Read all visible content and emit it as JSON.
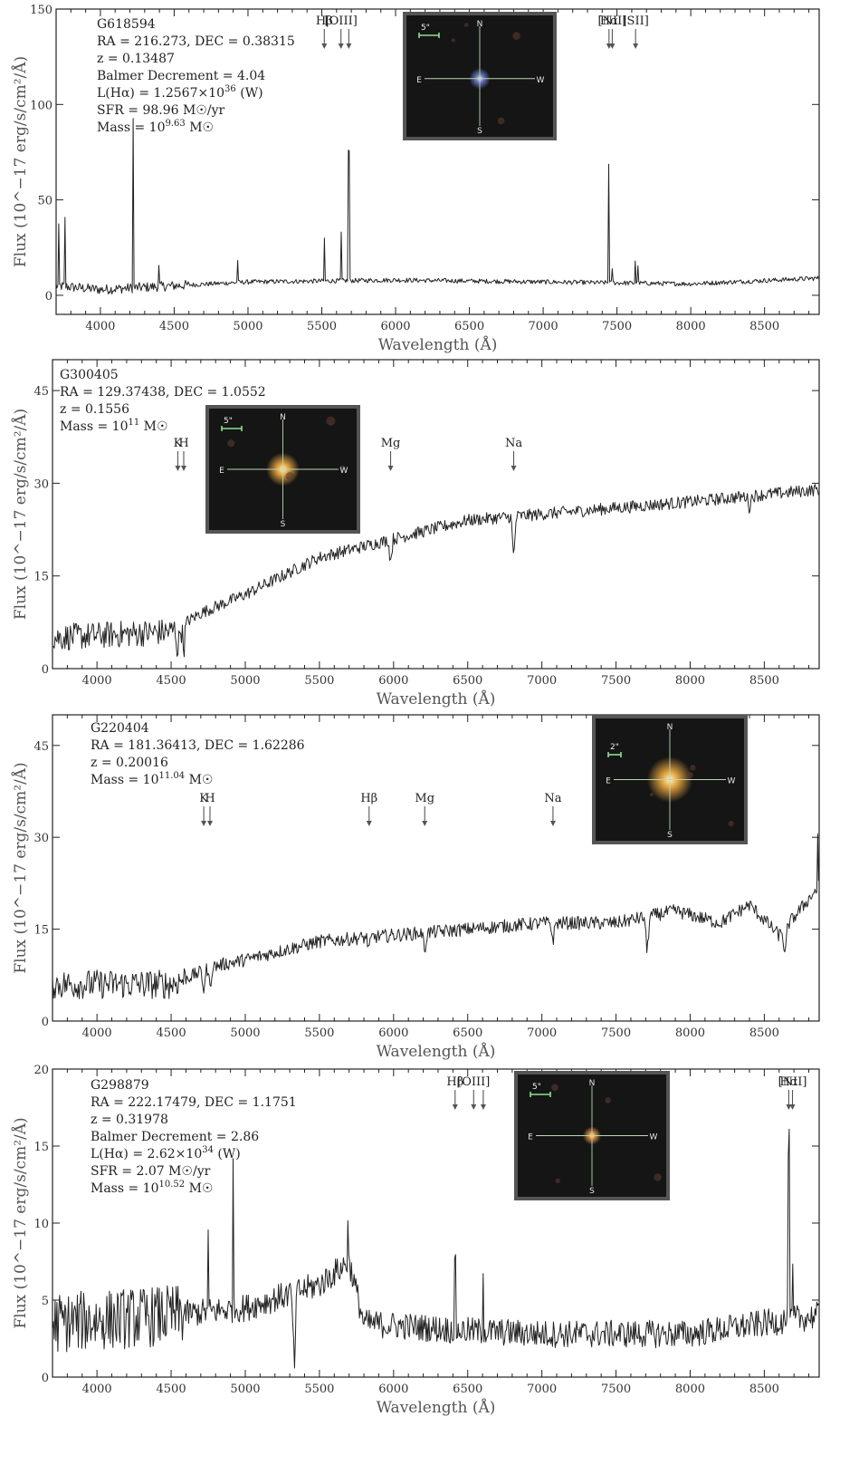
{
  "chart_data": [
    {
      "type": "line",
      "id": "G618594",
      "info": [
        "G618594",
        "RA = 216.273, DEC = 0.38315",
        "z = 0.13487",
        "Balmer Decrement = 4.04",
        "L(Hα) = 1.2567×10^36 (W)",
        "SFR = 98.96 M☉/yr",
        "Mass = 10^9.63 M☉"
      ],
      "xlabel": "Wavelength (Å)",
      "ylabel": "Flux (10^−17 erg/s/cm²/Å)",
      "xlim": [
        3700,
        8870
      ],
      "ylim": [
        -10,
        150
      ],
      "xticks": [
        4000,
        4500,
        5000,
        5500,
        6000,
        6500,
        7000,
        7500,
        8000,
        8500
      ],
      "yticks": [
        0,
        50,
        100,
        150
      ],
      "lines": [
        {
          "label": "Hβ",
          "wavelengths": [
            5517
          ]
        },
        {
          "label": "[OIII]",
          "wavelengths": [
            5630,
            5683
          ]
        },
        {
          "label": "Hα",
          "wavelengths": [
            7446
          ]
        },
        {
          "label": "[NII]",
          "wavelengths": [
            7468
          ]
        },
        {
          "label": "[SII]",
          "wavelengths": [
            7626
          ]
        }
      ],
      "inset": {
        "scale_label": "5\"",
        "compass": [
          "N",
          "E",
          "W",
          "S"
        ],
        "color": "#6a78c8"
      },
      "continuum": [
        [
          3700,
          5
        ],
        [
          4000,
          3
        ],
        [
          4500,
          5
        ],
        [
          5000,
          7
        ],
        [
          6000,
          8
        ],
        [
          7000,
          7
        ],
        [
          8000,
          6
        ],
        [
          8870,
          9
        ]
      ],
      "emission": [
        [
          3720,
          30
        ],
        [
          3760,
          35
        ],
        [
          4220,
          88
        ],
        [
          4395,
          10
        ],
        [
          4930,
          12
        ],
        [
          5517,
          22
        ],
        [
          5630,
          25
        ],
        [
          5683,
          68
        ],
        [
          7446,
          63
        ],
        [
          7468,
          8
        ],
        [
          7626,
          12
        ],
        [
          7640,
          10
        ]
      ],
      "absorption": [],
      "noise": 1.2
    },
    {
      "type": "line",
      "id": "G300405",
      "info": [
        "G300405",
        "RA = 129.37438, DEC = 1.0552",
        "z = 0.1556",
        "Mass = 10^11 M☉"
      ],
      "xlabel": "Wavelength (Å)",
      "ylabel": "Flux (10^−17 erg/s/cm²/Å)",
      "xlim": [
        3700,
        8870
      ],
      "ylim": [
        0,
        50
      ],
      "xticks": [
        4000,
        4500,
        5000,
        5500,
        6000,
        6500,
        7000,
        7500,
        8000,
        8500
      ],
      "yticks": [
        0,
        15,
        30,
        45
      ],
      "lines": [
        {
          "label": "K",
          "wavelengths": [
            4545
          ]
        },
        {
          "label": "H",
          "wavelengths": [
            4585
          ]
        },
        {
          "label": "Mg",
          "wavelengths": [
            5980
          ]
        },
        {
          "label": "Na",
          "wavelengths": [
            6810
          ]
        }
      ],
      "inset": {
        "scale_label": "5\"",
        "compass": [
          "N",
          "E",
          "W",
          "S"
        ],
        "color": "#e0a040"
      },
      "continuum": [
        [
          3700,
          5
        ],
        [
          4500,
          6
        ],
        [
          4700,
          9
        ],
        [
          5000,
          12
        ],
        [
          5500,
          18
        ],
        [
          6000,
          21
        ],
        [
          6500,
          24
        ],
        [
          7000,
          25
        ],
        [
          7500,
          26
        ],
        [
          8000,
          27
        ],
        [
          8870,
          29
        ]
      ],
      "emission": [],
      "absorption": [
        [
          4545,
          4
        ],
        [
          4585,
          4
        ],
        [
          5980,
          3.5
        ],
        [
          6810,
          7
        ],
        [
          8400,
          2
        ]
      ],
      "noise": 1.0
    },
    {
      "type": "line",
      "id": "G220404",
      "info": [
        "G220404",
        "RA = 181.36413, DEC = 1.62286",
        "z = 0.20016",
        "Mass = 10^11.04 M☉"
      ],
      "xlabel": "Wavelength (Å)",
      "ylabel": "Flux (10^−17 erg/s/cm²/Å)",
      "xlim": [
        3700,
        8870
      ],
      "ylim": [
        0,
        50
      ],
      "xticks": [
        4000,
        4500,
        5000,
        5500,
        6000,
        6500,
        7000,
        7500,
        8000,
        8500
      ],
      "yticks": [
        0,
        15,
        30,
        45
      ],
      "lines": [
        {
          "label": "K",
          "wavelengths": [
            4720
          ]
        },
        {
          "label": "H",
          "wavelengths": [
            4762
          ]
        },
        {
          "label": "Hβ",
          "wavelengths": [
            5835
          ]
        },
        {
          "label": "Mg",
          "wavelengths": [
            6210
          ]
        },
        {
          "label": "Na",
          "wavelengths": [
            7075
          ]
        }
      ],
      "inset": {
        "scale_label": "2\"",
        "compass": [
          "N",
          "E",
          "W",
          "S"
        ],
        "color": "#e0a040"
      },
      "continuum": [
        [
          3700,
          6
        ],
        [
          4500,
          6
        ],
        [
          4800,
          9
        ],
        [
          5000,
          10
        ],
        [
          5500,
          13
        ],
        [
          6000,
          14
        ],
        [
          6500,
          15
        ],
        [
          7000,
          16
        ],
        [
          7500,
          16
        ],
        [
          7900,
          18
        ],
        [
          8200,
          16
        ],
        [
          8400,
          19
        ],
        [
          8600,
          14
        ],
        [
          8870,
          22
        ]
      ],
      "emission": [
        [
          8860,
          8
        ]
      ],
      "absorption": [
        [
          4720,
          3
        ],
        [
          4762,
          3
        ],
        [
          5835,
          2
        ],
        [
          6210,
          3
        ],
        [
          7075,
          3
        ],
        [
          7710,
          6
        ],
        [
          8640,
          5
        ]
      ],
      "noise": 1.1
    },
    {
      "type": "line",
      "id": "G298879",
      "info": [
        "G298879",
        "RA = 222.17479, DEC = 1.1751",
        "z = 0.31978",
        "Balmer Decrement = 2.86",
        "L(Hα) = 2.62×10^34 (W)",
        "SFR = 2.07 M☉/yr",
        "Mass = 10^10.52 M☉"
      ],
      "xlabel": "Wavelength (Å)",
      "ylabel": "Flux (10^−17 erg/s/cm²/Å)",
      "xlim": [
        3700,
        8870
      ],
      "ylim": [
        0,
        20
      ],
      "xticks": [
        4000,
        4500,
        5000,
        5500,
        6000,
        6500,
        7000,
        7500,
        8000,
        8500
      ],
      "yticks": [
        0,
        5,
        10,
        15,
        20
      ],
      "lines": [
        {
          "label": "Hβ",
          "wavelengths": [
            6415
          ]
        },
        {
          "label": "[OIII]",
          "wavelengths": [
            6540,
            6605
          ]
        },
        {
          "label": "Hα",
          "wavelengths": [
            8665
          ]
        },
        {
          "label": "[NII]",
          "wavelengths": [
            8690
          ]
        }
      ],
      "inset": {
        "scale_label": "5\"",
        "compass": [
          "N",
          "E",
          "W",
          "S"
        ],
        "color": "#d08a40"
      },
      "continuum": [
        [
          3700,
          3.5
        ],
        [
          4500,
          4
        ],
        [
          5000,
          4.5
        ],
        [
          5500,
          6
        ],
        [
          5700,
          7.5
        ],
        [
          5800,
          3.5
        ],
        [
          6500,
          3
        ],
        [
          7000,
          2.8
        ],
        [
          8000,
          2.8
        ],
        [
          8870,
          4
        ]
      ],
      "emission": [
        [
          4750,
          5
        ],
        [
          4920,
          10.5
        ],
        [
          5690,
          3
        ],
        [
          6415,
          4
        ],
        [
          6605,
          4.5
        ],
        [
          8665,
          11.5
        ],
        [
          8690,
          3
        ]
      ],
      "absorption": [
        [
          5330,
          5
        ]
      ],
      "noise": 0.9
    }
  ]
}
